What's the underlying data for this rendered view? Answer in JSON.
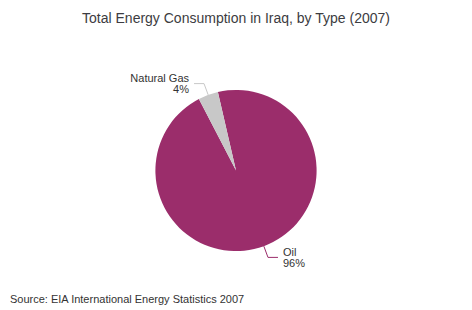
{
  "chart_data": {
    "type": "pie",
    "title": "Total Energy Consumption in Iraq, by Type (2007)",
    "categories": [
      "Oil",
      "Natural Gas"
    ],
    "values": [
      96,
      4
    ],
    "value_labels": [
      "96%",
      "4%"
    ],
    "colors": [
      "#9B2D6B",
      "#C8C8C8"
    ],
    "annotations": [
      "Source: EIA International Energy Statistics 2007"
    ],
    "legend": false
  }
}
